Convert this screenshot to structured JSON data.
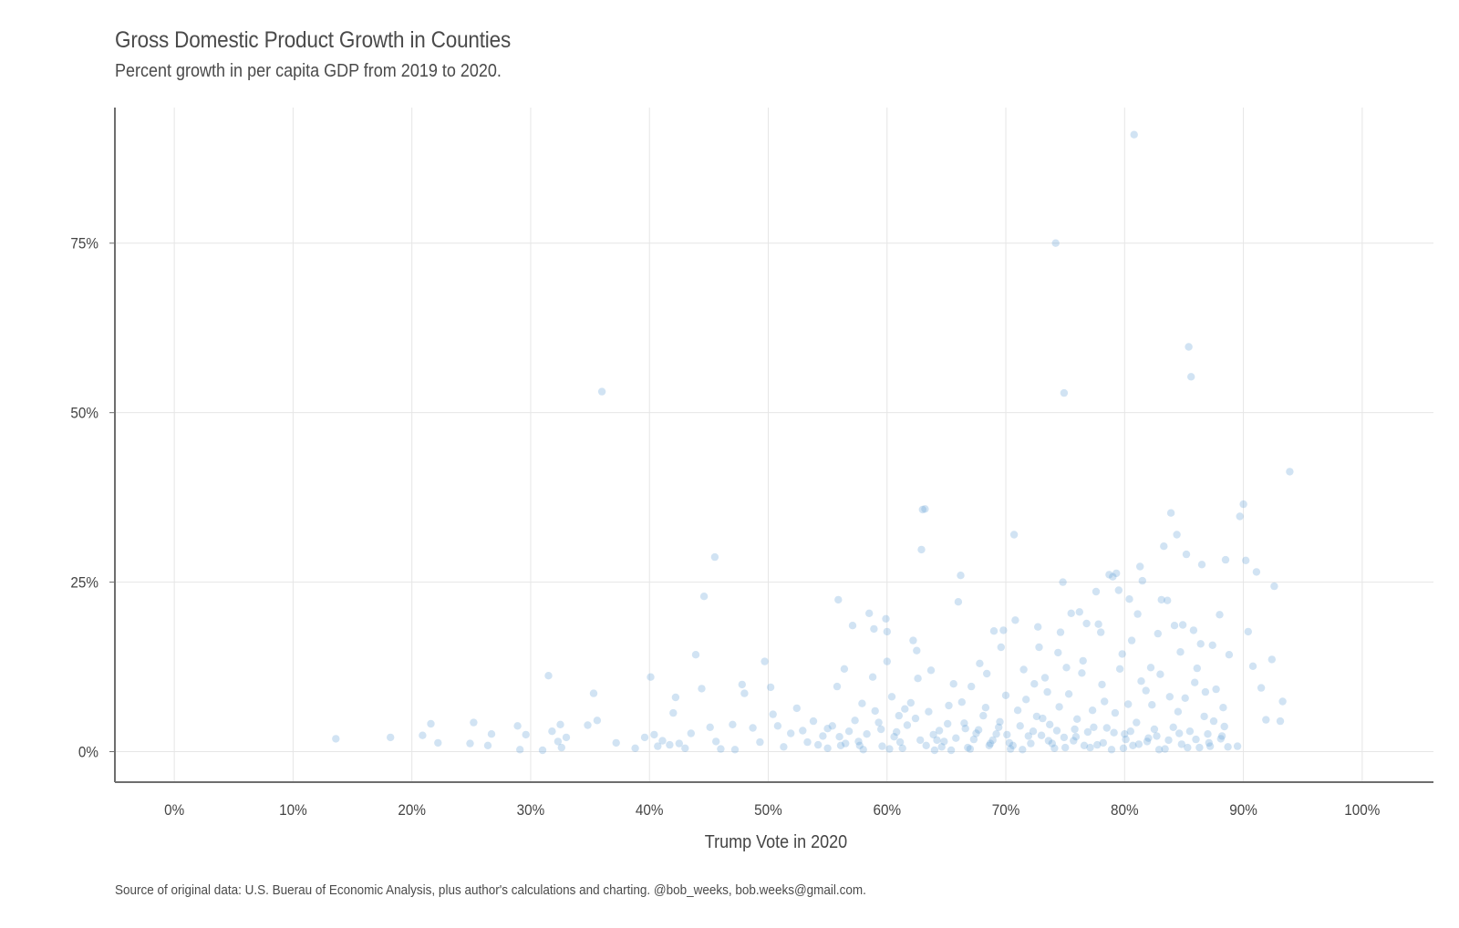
{
  "page": {
    "title": "Gross Domestic Product Growth in Counties",
    "subtitle": "Percent growth in per capita GDP from 2019 to 2020.",
    "caption": "Source of original data: U.S. Buerau of Economic Analysis, plus author's calculations and charting. @bob_weeks, bob.weeks@gmail.com."
  },
  "colors": {
    "point": "#5b9bd5",
    "grid": "#e6e6e6",
    "axis": "#6e6e6e",
    "text": "#444444"
  },
  "chart_data": {
    "type": "scatter",
    "title": "Gross Domestic Product Growth in Counties",
    "subtitle": "Percent growth in per capita GDP from 2019 to 2020.",
    "xlabel": "Trump Vote in 2020",
    "ylabel": "",
    "xlim": [
      -5,
      106
    ],
    "ylim": [
      -4.5,
      95
    ],
    "x_ticks": [
      0,
      10,
      20,
      30,
      40,
      50,
      60,
      70,
      80,
      90,
      100
    ],
    "x_tick_labels": [
      "0%",
      "10%",
      "20%",
      "30%",
      "40%",
      "50%",
      "60%",
      "70%",
      "80%",
      "90%",
      "100%"
    ],
    "y_ticks": [
      0,
      25,
      50,
      75
    ],
    "y_tick_labels": [
      "0%",
      "25%",
      "50%",
      "75%"
    ],
    "grid": true,
    "points": [
      [
        13.6,
        1.9
      ],
      [
        18.2,
        2.1
      ],
      [
        20.9,
        2.4
      ],
      [
        21.6,
        4.1
      ],
      [
        22.2,
        1.3
      ],
      [
        24.9,
        1.2
      ],
      [
        25.2,
        4.3
      ],
      [
        26.4,
        0.9
      ],
      [
        26.7,
        2.6
      ],
      [
        28.9,
        3.8
      ],
      [
        29.1,
        0.3
      ],
      [
        29.6,
        2.5
      ],
      [
        31.0,
        0.2
      ],
      [
        31.5,
        11.2
      ],
      [
        31.8,
        3.0
      ],
      [
        32.3,
        1.5
      ],
      [
        32.5,
        4.0
      ],
      [
        32.6,
        0.6
      ],
      [
        33.0,
        2.1
      ],
      [
        34.8,
        3.9
      ],
      [
        35.3,
        8.6
      ],
      [
        35.6,
        4.6
      ],
      [
        36.0,
        53.1
      ],
      [
        37.2,
        1.3
      ],
      [
        38.8,
        0.5
      ],
      [
        39.6,
        2.1
      ],
      [
        40.1,
        11.0
      ],
      [
        40.4,
        2.5
      ],
      [
        40.7,
        0.8
      ],
      [
        41.1,
        1.6
      ],
      [
        41.7,
        1.0
      ],
      [
        42.0,
        5.7
      ],
      [
        42.2,
        8.0
      ],
      [
        42.5,
        1.2
      ],
      [
        43.0,
        0.5
      ],
      [
        43.5,
        2.7
      ],
      [
        43.9,
        14.3
      ],
      [
        44.4,
        9.3
      ],
      [
        44.6,
        22.9
      ],
      [
        45.1,
        3.6
      ],
      [
        45.5,
        28.7
      ],
      [
        45.6,
        1.5
      ],
      [
        46.0,
        0.4
      ],
      [
        47.0,
        4.0
      ],
      [
        47.2,
        0.3
      ],
      [
        47.8,
        9.9
      ],
      [
        48.0,
        8.6
      ],
      [
        48.7,
        3.5
      ],
      [
        49.3,
        1.4
      ],
      [
        49.7,
        13.3
      ],
      [
        50.2,
        9.5
      ],
      [
        50.4,
        5.5
      ],
      [
        50.8,
        3.8
      ],
      [
        51.3,
        0.7
      ],
      [
        51.9,
        2.7
      ],
      [
        52.4,
        6.4
      ],
      [
        52.9,
        3.1
      ],
      [
        53.3,
        1.4
      ],
      [
        53.8,
        4.5
      ],
      [
        54.2,
        1.0
      ],
      [
        54.6,
        2.3
      ],
      [
        55.0,
        0.5
      ],
      [
        55.4,
        3.8
      ],
      [
        55.8,
        9.6
      ],
      [
        55.9,
        22.4
      ],
      [
        56.1,
        0.9
      ],
      [
        56.4,
        12.2
      ],
      [
        56.8,
        3.0
      ],
      [
        57.1,
        18.6
      ],
      [
        57.6,
        1.5
      ],
      [
        57.9,
        7.1
      ],
      [
        58.3,
        2.6
      ],
      [
        58.5,
        20.4
      ],
      [
        58.8,
        11.0
      ],
      [
        58.9,
        18.1
      ],
      [
        59.3,
        4.3
      ],
      [
        59.6,
        0.8
      ],
      [
        59.9,
        19.6
      ],
      [
        60.0,
        17.7
      ],
      [
        60.0,
        13.3
      ],
      [
        60.4,
        8.1
      ],
      [
        60.6,
        2.2
      ],
      [
        61.0,
        5.3
      ],
      [
        61.3,
        0.5
      ],
      [
        61.7,
        3.9
      ],
      [
        62.0,
        7.2
      ],
      [
        62.2,
        16.4
      ],
      [
        62.5,
        14.9
      ],
      [
        62.6,
        10.8
      ],
      [
        62.9,
        29.8
      ],
      [
        63.0,
        35.7
      ],
      [
        63.2,
        35.8
      ],
      [
        63.5,
        5.9
      ],
      [
        63.7,
        12.0
      ],
      [
        64.0,
        0.2
      ],
      [
        64.4,
        3.1
      ],
      [
        64.8,
        1.5
      ],
      [
        65.2,
        6.8
      ],
      [
        65.6,
        10.0
      ],
      [
        66.0,
        22.1
      ],
      [
        66.2,
        26.0
      ],
      [
        66.5,
        4.2
      ],
      [
        66.8,
        0.6
      ],
      [
        67.1,
        9.6
      ],
      [
        67.5,
        2.7
      ],
      [
        67.8,
        13.0
      ],
      [
        68.1,
        5.3
      ],
      [
        68.4,
        11.5
      ],
      [
        68.7,
        1.2
      ],
      [
        69.0,
        17.8
      ],
      [
        69.4,
        3.6
      ],
      [
        69.6,
        15.4
      ],
      [
        69.8,
        17.9
      ],
      [
        70.0,
        8.3
      ],
      [
        70.4,
        0.4
      ],
      [
        70.7,
        32.0
      ],
      [
        70.8,
        19.4
      ],
      [
        71.0,
        6.1
      ],
      [
        71.5,
        12.1
      ],
      [
        71.9,
        2.3
      ],
      [
        72.4,
        10.0
      ],
      [
        72.7,
        18.4
      ],
      [
        72.8,
        15.4
      ],
      [
        73.1,
        4.9
      ],
      [
        73.5,
        8.8
      ],
      [
        73.9,
        1.2
      ],
      [
        74.2,
        75.0
      ],
      [
        74.4,
        14.6
      ],
      [
        74.6,
        17.6
      ],
      [
        74.8,
        25.0
      ],
      [
        74.9,
        52.9
      ],
      [
        75.1,
        12.4
      ],
      [
        75.5,
        20.4
      ],
      [
        75.8,
        3.3
      ],
      [
        76.2,
        20.6
      ],
      [
        76.5,
        13.4
      ],
      [
        76.8,
        18.9
      ],
      [
        77.1,
        0.6
      ],
      [
        77.6,
        23.6
      ],
      [
        77.8,
        18.8
      ],
      [
        78.0,
        17.6
      ],
      [
        78.3,
        7.4
      ],
      [
        78.7,
        26.1
      ],
      [
        79.0,
        25.8
      ],
      [
        79.3,
        26.3
      ],
      [
        79.5,
        23.8
      ],
      [
        79.8,
        14.4
      ],
      [
        80.1,
        1.8
      ],
      [
        80.4,
        22.5
      ],
      [
        80.6,
        16.4
      ],
      [
        80.8,
        91.0
      ],
      [
        81.1,
        20.3
      ],
      [
        81.3,
        27.3
      ],
      [
        81.5,
        25.2
      ],
      [
        81.8,
        9.0
      ],
      [
        82.2,
        12.4
      ],
      [
        82.5,
        3.3
      ],
      [
        82.8,
        17.4
      ],
      [
        83.1,
        22.4
      ],
      [
        83.3,
        30.3
      ],
      [
        83.6,
        22.3
      ],
      [
        83.9,
        35.2
      ],
      [
        84.2,
        18.6
      ],
      [
        84.4,
        32.0
      ],
      [
        84.7,
        14.7
      ],
      [
        84.9,
        18.7
      ],
      [
        85.2,
        29.1
      ],
      [
        85.4,
        59.7
      ],
      [
        85.6,
        55.3
      ],
      [
        85.8,
        17.9
      ],
      [
        86.1,
        12.3
      ],
      [
        86.4,
        15.9
      ],
      [
        86.5,
        27.6
      ],
      [
        86.8,
        8.8
      ],
      [
        87.1,
        1.3
      ],
      [
        87.4,
        15.7
      ],
      [
        87.7,
        9.2
      ],
      [
        88.0,
        20.2
      ],
      [
        88.3,
        6.5
      ],
      [
        88.5,
        28.3
      ],
      [
        88.8,
        14.3
      ],
      [
        89.5,
        0.8
      ],
      [
        89.7,
        34.7
      ],
      [
        90.0,
        36.5
      ],
      [
        90.2,
        28.2
      ],
      [
        90.4,
        17.7
      ],
      [
        90.8,
        12.6
      ],
      [
        91.1,
        26.5
      ],
      [
        91.5,
        9.4
      ],
      [
        91.9,
        4.7
      ],
      [
        92.4,
        13.6
      ],
      [
        92.6,
        24.4
      ],
      [
        93.1,
        4.5
      ],
      [
        93.3,
        7.4
      ],
      [
        93.9,
        41.3
      ],
      [
        55.0,
        3.4
      ],
      [
        56.5,
        1.2
      ],
      [
        57.3,
        4.6
      ],
      [
        58.0,
        0.3
      ],
      [
        59.0,
        6.0
      ],
      [
        60.8,
        2.9
      ],
      [
        61.5,
        6.3
      ],
      [
        62.8,
        1.7
      ],
      [
        63.9,
        2.5
      ],
      [
        64.6,
        0.7
      ],
      [
        65.1,
        4.1
      ],
      [
        65.8,
        2.0
      ],
      [
        66.3,
        7.3
      ],
      [
        67.0,
        0.4
      ],
      [
        67.7,
        3.2
      ],
      [
        68.3,
        6.5
      ],
      [
        68.9,
        1.7
      ],
      [
        69.5,
        4.4
      ],
      [
        70.1,
        2.5
      ],
      [
        70.6,
        0.9
      ],
      [
        71.2,
        3.8
      ],
      [
        71.7,
        7.7
      ],
      [
        72.1,
        1.2
      ],
      [
        72.6,
        5.2
      ],
      [
        73.0,
        2.4
      ],
      [
        73.3,
        10.9
      ],
      [
        73.7,
        4.0
      ],
      [
        74.1,
        0.5
      ],
      [
        74.5,
        6.6
      ],
      [
        74.9,
        2.1
      ],
      [
        75.3,
        8.5
      ],
      [
        75.7,
        1.6
      ],
      [
        76.0,
        4.8
      ],
      [
        76.4,
        11.6
      ],
      [
        76.9,
        2.9
      ],
      [
        77.3,
        6.1
      ],
      [
        77.7,
        1.0
      ],
      [
        78.1,
        9.9
      ],
      [
        78.5,
        3.5
      ],
      [
        78.9,
        0.3
      ],
      [
        79.2,
        5.7
      ],
      [
        79.6,
        12.2
      ],
      [
        80.0,
        2.6
      ],
      [
        80.3,
        7.0
      ],
      [
        80.7,
        0.9
      ],
      [
        81.0,
        4.3
      ],
      [
        81.4,
        10.4
      ],
      [
        81.9,
        1.5
      ],
      [
        82.3,
        6.9
      ],
      [
        82.7,
        2.3
      ],
      [
        83.0,
        11.4
      ],
      [
        83.4,
        0.4
      ],
      [
        83.8,
        8.1
      ],
      [
        84.1,
        3.6
      ],
      [
        84.5,
        5.9
      ],
      [
        84.8,
        1.1
      ],
      [
        85.1,
        7.9
      ],
      [
        85.5,
        3.0
      ],
      [
        85.9,
        10.2
      ],
      [
        86.3,
        0.6
      ],
      [
        86.7,
        5.2
      ],
      [
        87.0,
        2.6
      ],
      [
        87.5,
        4.5
      ],
      [
        88.1,
        1.9
      ],
      [
        88.4,
        3.7
      ],
      [
        88.7,
        0.7
      ],
      [
        56.0,
        2.2
      ],
      [
        57.7,
        0.9
      ],
      [
        59.5,
        3.3
      ],
      [
        60.2,
        0.4
      ],
      [
        61.1,
        1.4
      ],
      [
        62.4,
        4.9
      ],
      [
        63.3,
        0.9
      ],
      [
        64.2,
        1.7
      ],
      [
        65.4,
        0.2
      ],
      [
        66.6,
        3.4
      ],
      [
        67.3,
        1.8
      ],
      [
        68.6,
        0.9
      ],
      [
        69.2,
        2.6
      ],
      [
        70.3,
        1.3
      ],
      [
        71.4,
        0.3
      ],
      [
        72.3,
        3.0
      ],
      [
        73.6,
        1.6
      ],
      [
        74.3,
        3.1
      ],
      [
        75.0,
        0.6
      ],
      [
        75.9,
        2.2
      ],
      [
        76.6,
        0.9
      ],
      [
        77.4,
        3.6
      ],
      [
        78.2,
        1.3
      ],
      [
        79.1,
        2.8
      ],
      [
        79.9,
        0.5
      ],
      [
        80.5,
        3.0
      ],
      [
        81.2,
        1.1
      ],
      [
        82.0,
        2.0
      ],
      [
        82.9,
        0.3
      ],
      [
        83.7,
        1.7
      ],
      [
        84.6,
        2.7
      ],
      [
        85.3,
        0.6
      ],
      [
        86.0,
        1.8
      ],
      [
        87.2,
        0.8
      ],
      [
        88.2,
        2.3
      ]
    ]
  }
}
